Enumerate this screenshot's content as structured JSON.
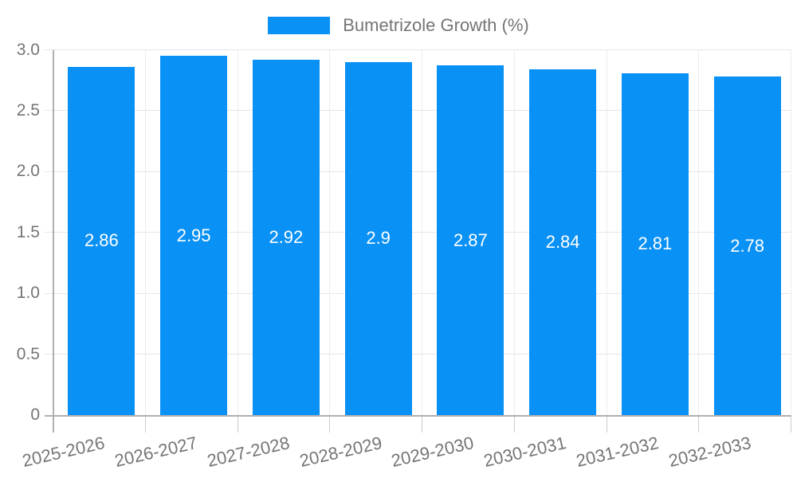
{
  "chart_data": {
    "type": "bar",
    "title": "",
    "legend": {
      "label": "Bumetrizole Growth (%)",
      "position": "top"
    },
    "categories": [
      "2025-2026",
      "2026-2027",
      "2027-2028",
      "2028-2029",
      "2029-2030",
      "2030-2031",
      "2031-2032",
      "2032-2033"
    ],
    "series": [
      {
        "name": "Bumetrizole Growth (%)",
        "values": [
          2.86,
          2.95,
          2.92,
          2.9,
          2.87,
          2.84,
          2.81,
          2.78
        ]
      }
    ],
    "value_labels": [
      "2.86",
      "2.95",
      "2.92",
      "2.9",
      "2.87",
      "2.84",
      "2.81",
      "2.78"
    ],
    "xlabel": "",
    "ylabel": "",
    "ylim": [
      0,
      3
    ],
    "yticks": [
      0,
      0.5,
      1,
      1.5,
      2,
      2.5,
      3
    ],
    "ytick_labels": [
      "0",
      "0.5",
      "1.0",
      "1.5",
      "2.0",
      "2.5",
      "3.0"
    ],
    "grid": true,
    "colors": {
      "bar": "#0a91f5",
      "hgrid": "#e6e6e6",
      "vgrid": "#ededed",
      "axis": "#b0b0b0",
      "xtick": "#cccccc",
      "text": "#757575",
      "value_text": "#ffffff",
      "background": "#ffffff"
    }
  }
}
